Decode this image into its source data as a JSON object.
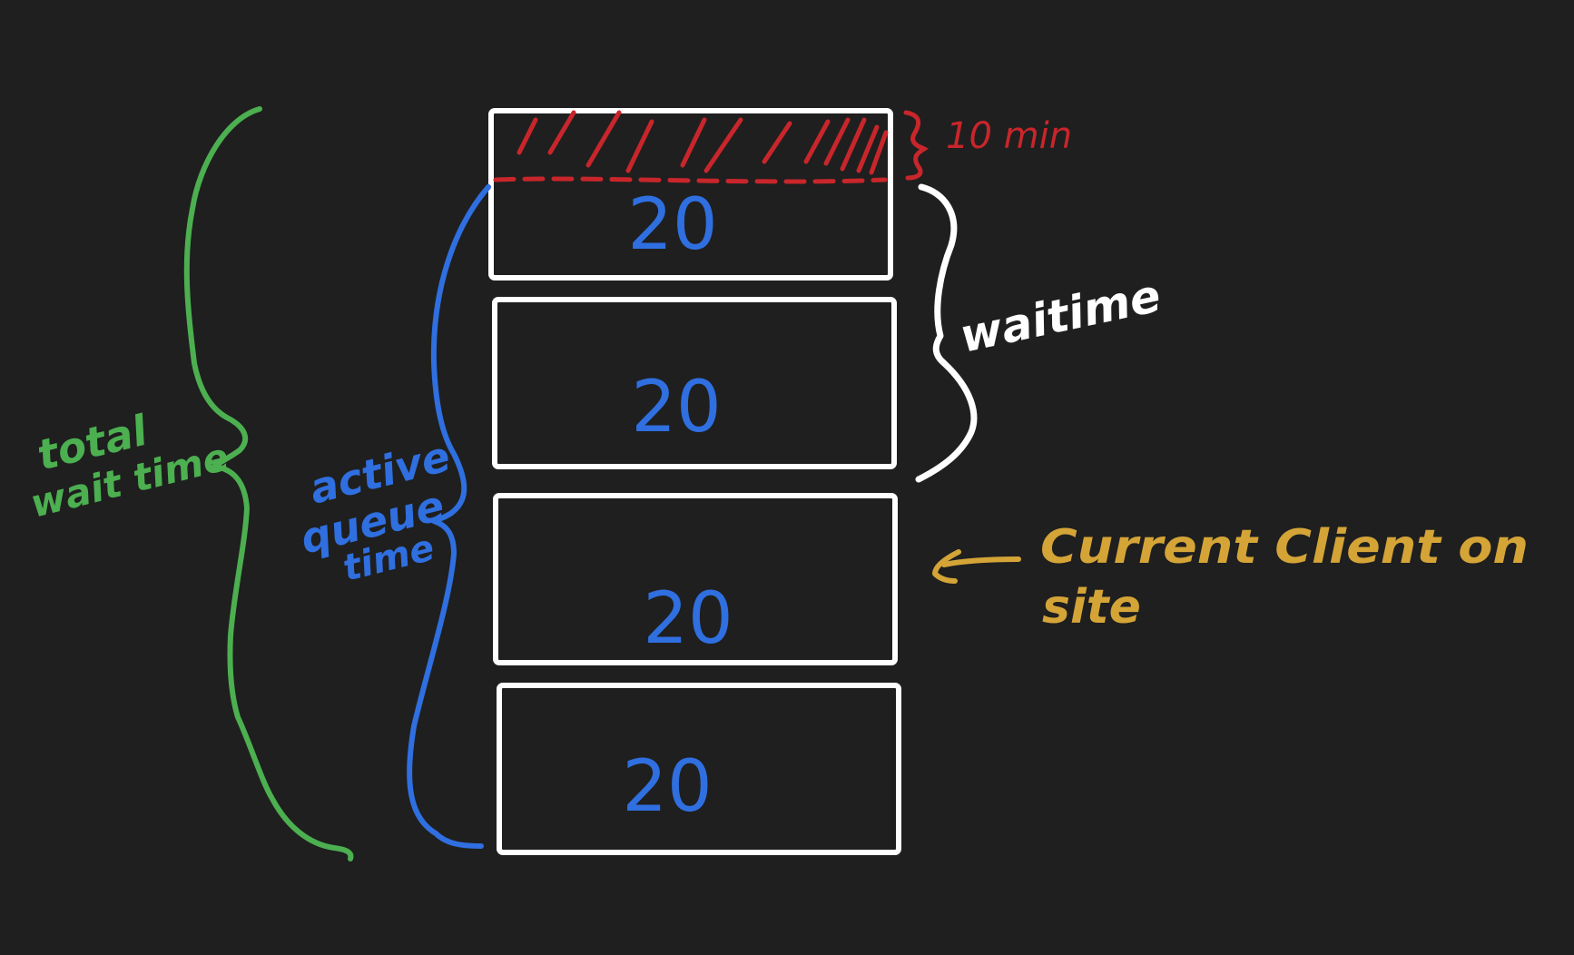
{
  "colors": {
    "background": "#1f1f1f",
    "box_outline": "#ffffff",
    "block_value": "#2f6fe0",
    "overflow_hatch": "#c8262b",
    "total_wait_brace": "#4caf50",
    "active_queue_brace": "#2f6fe0",
    "wait_time_brace": "#ffffff",
    "current_client": "#d4a437"
  },
  "blocks": [
    {
      "value": "20"
    },
    {
      "value": "20"
    },
    {
      "value": "20"
    },
    {
      "value": "20"
    }
  ],
  "labels": {
    "overflow": "10 min",
    "total_wait": [
      "total",
      "wait time"
    ],
    "active_queue": [
      "active",
      "queue",
      "time"
    ],
    "wait_time": "waitime",
    "current_client": [
      "Current Client on",
      "site"
    ]
  }
}
